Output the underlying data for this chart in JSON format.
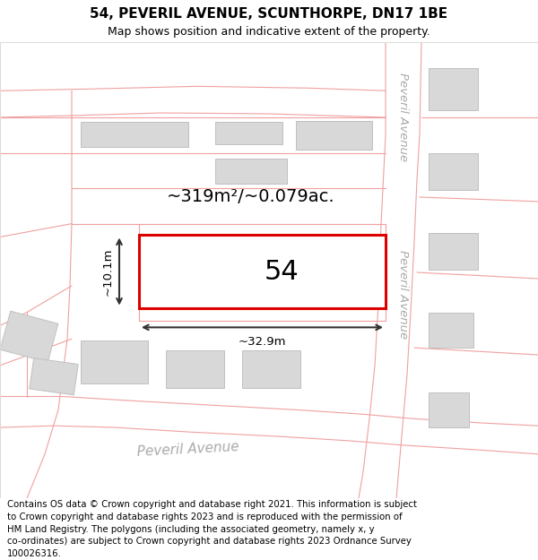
{
  "title": "54, PEVERIL AVENUE, SCUNTHORPE, DN17 1BE",
  "subtitle": "Map shows position and indicative extent of the property.",
  "footer_text": "Contains OS data © Crown copyright and database right 2021. This information is subject\nto Crown copyright and database rights 2023 and is reproduced with the permission of\nHM Land Registry. The polygons (including the associated geometry, namely x, y\nco-ordinates) are subject to Crown copyright and database rights 2023 Ordnance Survey\n100026316.",
  "bg": "#ffffff",
  "road_line_color": "#f0a0a0",
  "bldg_fill": "#d8d8d8",
  "bldg_edge": "#c0c0c0",
  "plot_edge": "#dd0000",
  "plot_fill": "#ffffff",
  "area_label": "~319m²/~0.079ac.",
  "plot_num": "54",
  "dim_w": "~32.9m",
  "dim_h": "~10.1m",
  "street_bottom": "Peveril Avenue",
  "street_right": "Peveril Avenue",
  "title_fontsize": 11,
  "subtitle_fontsize": 9,
  "footer_fontsize": 7.3
}
